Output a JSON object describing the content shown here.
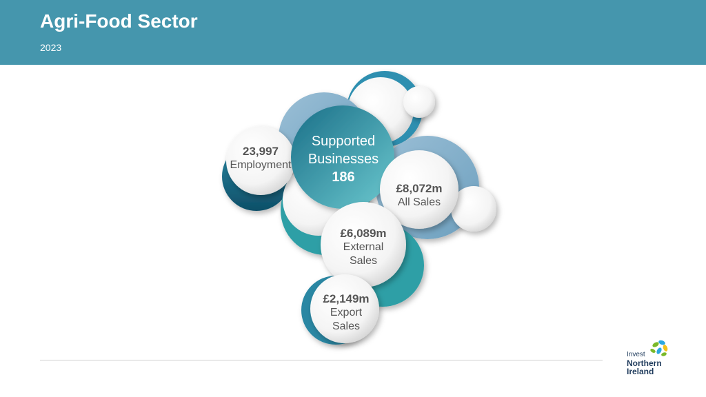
{
  "header": {
    "title": "Agri-Food Sector",
    "year": "2023"
  },
  "center": {
    "line1": "Supported",
    "line2": "Businesses",
    "value": "186"
  },
  "bubbles": {
    "employment": {
      "value": "23,997",
      "label": "Employment"
    },
    "all_sales": {
      "value": "£8,072m",
      "label": "All Sales"
    },
    "external_sales": {
      "value": "£6,089m",
      "label1": "External",
      "label2": "Sales"
    },
    "export_sales": {
      "value": "£2,149m",
      "label1": "Export",
      "label2": "Sales"
    }
  },
  "logo": {
    "line1": "Invest",
    "line2": "Northern",
    "line3": "Ireland"
  },
  "colors": {
    "header": "#4596ad",
    "teal_dark": "#1b6f88",
    "teal_mid": "#2ea6b0",
    "blue_light": "#8eb6cf",
    "text_grey": "#555555"
  }
}
